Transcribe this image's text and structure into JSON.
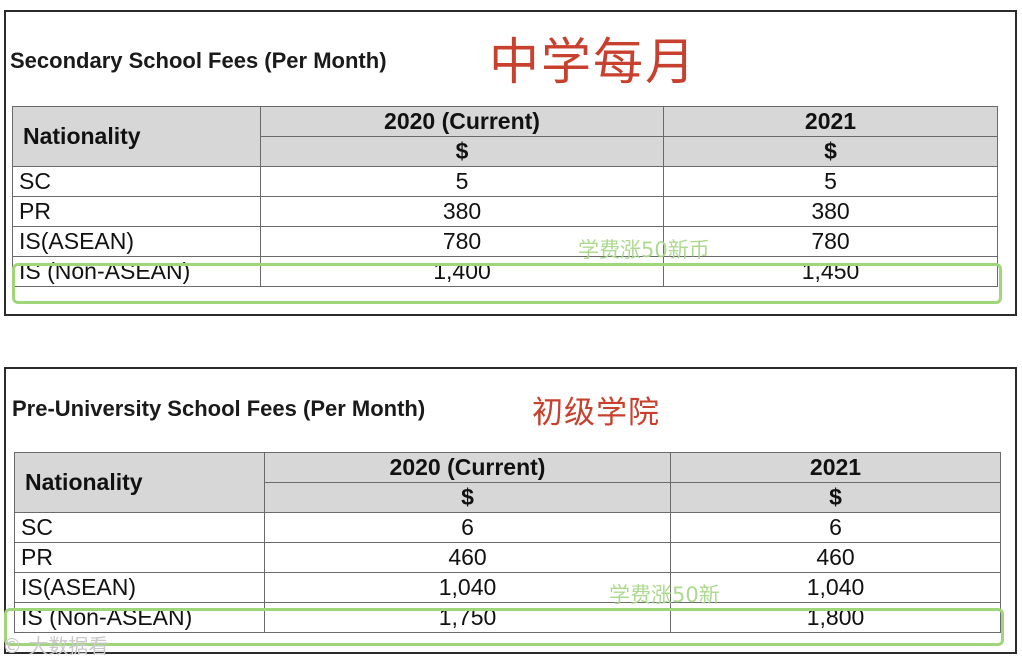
{
  "secondary": {
    "title": "Secondary School Fees (Per Month)",
    "title_cn": "中学每月",
    "nationality_header": "Nationality",
    "years": [
      "2020 (Current)",
      "2021"
    ],
    "unit": "$",
    "rows": [
      {
        "label": "SC",
        "y2020": "5",
        "y2021": "5"
      },
      {
        "label": "PR",
        "y2020": "380",
        "y2021": "380"
      },
      {
        "label": "IS(ASEAN)",
        "y2020": "780",
        "y2021": "780"
      },
      {
        "label": "IS (Non-ASEAN)",
        "y2020": "1,400",
        "y2021": "1,450"
      }
    ],
    "annotation": "学费涨50新币",
    "highlight_color": "#9fd67a"
  },
  "preuniversity": {
    "title": "Pre-University School Fees (Per Month)",
    "title_cn": "初级学院",
    "nationality_header": "Nationality",
    "years": [
      "2020 (Current)",
      "2021"
    ],
    "unit": "$",
    "rows": [
      {
        "label": "SC",
        "y2020": "6",
        "y2021": "6"
      },
      {
        "label": "PR",
        "y2020": "460",
        "y2021": "460"
      },
      {
        "label": "IS(ASEAN)",
        "y2020": "1,040",
        "y2021": "1,040"
      },
      {
        "label": "IS (Non-ASEAN)",
        "y2020": "1,750",
        "y2021": "1,800"
      }
    ],
    "annotation": "学费涨50新",
    "highlight_color": "#9fd67a"
  },
  "watermark": "© 大数据看",
  "colors": {
    "header_bg": "#d7d7d7",
    "cn_title": "#c8412e",
    "annotation": "#a8d88a"
  }
}
